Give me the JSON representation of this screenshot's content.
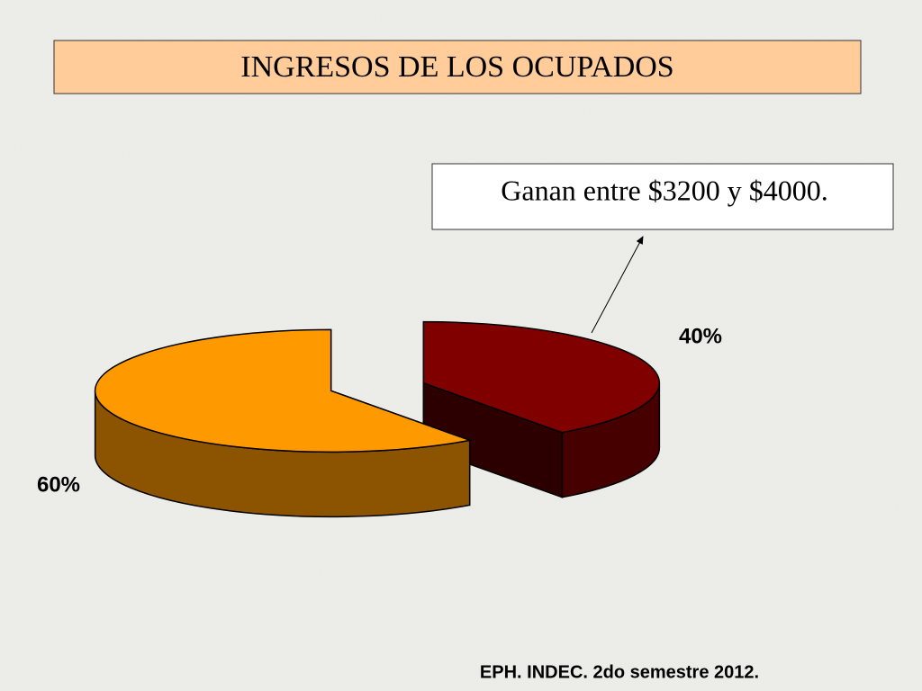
{
  "chart_data": {
    "type": "pie",
    "title": "INGRESOS DE LOS OCUPADOS",
    "annotation": "Ganan entre $3200 y $4000.",
    "source": "EPH. INDEC. 2do semestre 2012.",
    "values": [
      40,
      60
    ],
    "value_labels": [
      "40%",
      "60%"
    ],
    "colors": [
      "#800000",
      "#ff9900"
    ]
  }
}
